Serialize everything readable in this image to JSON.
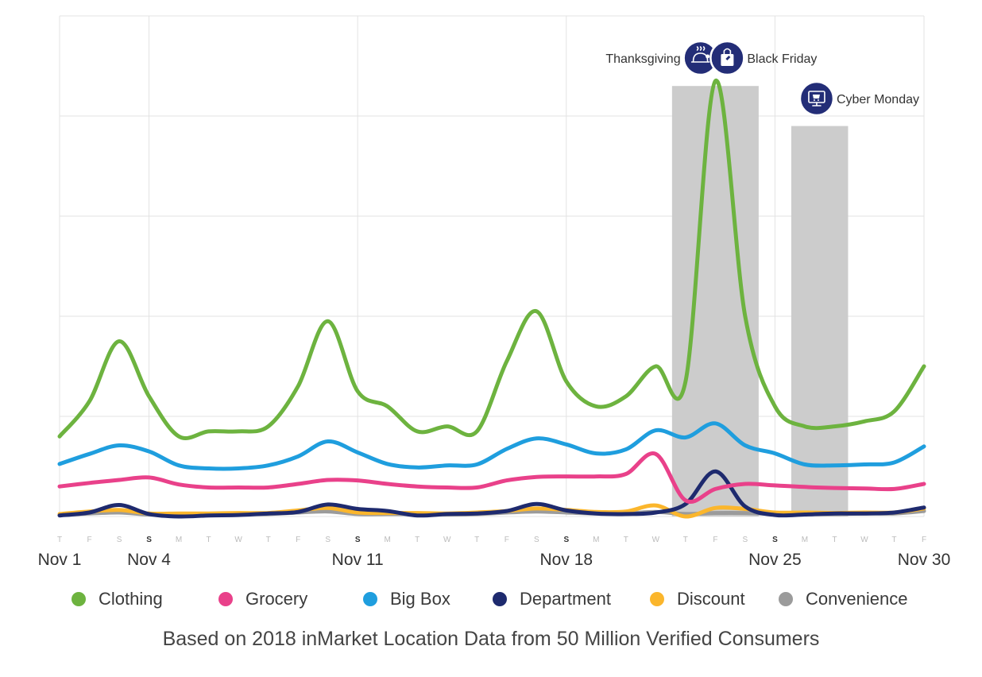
{
  "chart_data": {
    "type": "line",
    "title": "",
    "xlabel": "",
    "ylabel": "",
    "x": [
      "T",
      "F",
      "S",
      "S",
      "M",
      "T",
      "W",
      "T",
      "F",
      "S",
      "S",
      "M",
      "T",
      "W",
      "T",
      "F",
      "S",
      "S",
      "M",
      "T",
      "W",
      "T",
      "F",
      "S",
      "S",
      "M",
      "T",
      "W",
      "T",
      "F"
    ],
    "bold_day_indices": [
      3,
      10,
      17,
      24
    ],
    "date_labels": [
      {
        "index": 0,
        "label": "Nov 1"
      },
      {
        "index": 3,
        "label": "Nov 4"
      },
      {
        "index": 10,
        "label": "Nov 11"
      },
      {
        "index": 17,
        "label": "Nov 18"
      },
      {
        "index": 24,
        "label": "Nov 25"
      },
      {
        "index": 29,
        "label": "Nov 30"
      }
    ],
    "ylim": [
      0,
      100
    ],
    "grid": true,
    "series": [
      {
        "name": "Clothing",
        "color": "#6db33f",
        "values": [
          16,
          23,
          35,
          24,
          16,
          17,
          17,
          18,
          26,
          39,
          25,
          22,
          17,
          18,
          17,
          31,
          41,
          27,
          22,
          24,
          30,
          27,
          87,
          40,
          22,
          18,
          18,
          19,
          21,
          30
        ]
      },
      {
        "name": "Grocery",
        "color": "#e9418a",
        "values": [
          6,
          6.7,
          7.3,
          7.8,
          6.4,
          5.8,
          5.8,
          5.8,
          6.5,
          7.3,
          7.2,
          6.5,
          6,
          5.8,
          5.8,
          7.2,
          7.9,
          8,
          8,
          8.5,
          12.5,
          3.2,
          5.5,
          6.5,
          6.2,
          5.9,
          5.7,
          5.6,
          5.5,
          6.5
        ]
      },
      {
        "name": "Big Box",
        "color": "#1f9ede",
        "values": [
          10.5,
          12.5,
          14.2,
          13,
          10.2,
          9.6,
          9.6,
          10.2,
          12,
          15,
          12.8,
          10.5,
          9.8,
          10.2,
          10.4,
          13.5,
          15.6,
          14.4,
          12.6,
          13.4,
          17.2,
          15.8,
          18.6,
          14.2,
          12.6,
          10.4,
          10.2,
          10.4,
          10.8,
          14
        ]
      },
      {
        "name": "Department",
        "color": "#1e2a6e",
        "values": [
          0.2,
          0.8,
          2.3,
          0.5,
          0,
          0.2,
          0.3,
          0.6,
          0.9,
          2.4,
          1.5,
          1.1,
          0.2,
          0.5,
          0.6,
          1.1,
          2.5,
          1.2,
          0.6,
          0.5,
          0.8,
          2.5,
          9,
          2,
          0.3,
          0.4,
          0.6,
          0.6,
          0.8,
          1.8
        ]
      },
      {
        "name": "Discount",
        "color": "#fbb62c",
        "values": [
          0.5,
          1,
          1.3,
          0.6,
          0.6,
          0.6,
          0.7,
          0.7,
          1.2,
          1.7,
          0.8,
          0.7,
          0.7,
          0.6,
          0.8,
          1.1,
          1.6,
          1.3,
          0.9,
          1,
          2.2,
          0,
          1.7,
          1.5,
          0.8,
          0.8,
          0.7,
          0.8,
          0.8,
          1.6
        ]
      },
      {
        "name": "Convenience",
        "color": "#9b9b9b",
        "values": [
          0.3,
          0.6,
          0.8,
          0.4,
          0.4,
          0.4,
          0.5,
          0.5,
          0.8,
          1,
          0.5,
          0.5,
          0.5,
          0.4,
          0.5,
          0.8,
          1,
          0.8,
          0.6,
          0.6,
          0.9,
          0.5,
          0.7,
          0.7,
          0.5,
          0.5,
          0.5,
          0.6,
          0.6,
          1.1
        ]
      }
    ],
    "highlights": [
      {
        "start_index": 21,
        "end_index": 23,
        "top_value": 86
      },
      {
        "start_index": 25,
        "end_index": 26,
        "top_value": 78
      }
    ],
    "event_markers": [
      {
        "name": "Thanksgiving",
        "label": "Thanksgiving",
        "icon": "turkey-icon",
        "anchor_index": 21.5,
        "label_side": "left"
      },
      {
        "name": "Black Friday",
        "label": "Black Friday",
        "icon": "shopping-bag-icon",
        "anchor_index": 22.4,
        "label_side": "right"
      },
      {
        "name": "Cyber Monday",
        "label": "Cyber Monday",
        "icon": "computer-cart-icon",
        "anchor_index": 25.4,
        "label_side": "right"
      }
    ],
    "legend_position": "bottom"
  },
  "footer": {
    "text": "Based on 2018 inMarket Location Data from 50 Million Verified Consumers"
  },
  "colors": {
    "icon_circle": "#232d77",
    "highlight": "#cccccc",
    "grid": "#e3e3e3"
  }
}
